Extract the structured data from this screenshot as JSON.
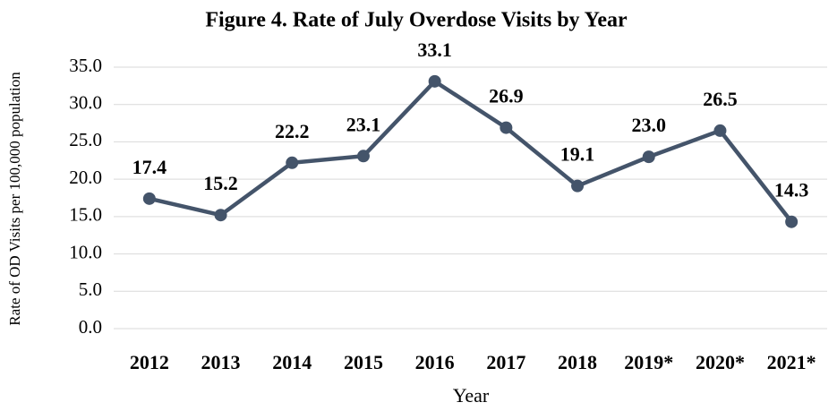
{
  "chart_data": {
    "type": "line",
    "title": "Figure 4. Rate of July Overdose Visits by Year",
    "x_label": "Year",
    "y_label": "Rate of OD Visits per 100,000 population",
    "categories": [
      "2012",
      "2013",
      "2014",
      "2015",
      "2016",
      "2017",
      "2018",
      "2019*",
      "2020*",
      "2021*"
    ],
    "values": [
      17.4,
      15.2,
      22.2,
      23.1,
      33.1,
      26.9,
      19.1,
      23.0,
      26.5,
      14.3
    ],
    "value_labels": [
      "17.4",
      "15.2",
      "22.2",
      "23.1",
      "33.1",
      "26.9",
      "19.1",
      "23.0",
      "26.5",
      "14.3"
    ],
    "color": "#44546a",
    "ylim": [
      0,
      35
    ],
    "yticks": [
      {
        "value": 0,
        "label": "0.0"
      },
      {
        "value": 5,
        "label": "5.0"
      },
      {
        "value": 10,
        "label": "10.0"
      },
      {
        "value": 15,
        "label": "15.0"
      },
      {
        "value": 20,
        "label": "20.0"
      },
      {
        "value": 25,
        "label": "25.0"
      },
      {
        "value": 30,
        "label": "30.0"
      },
      {
        "value": 35,
        "label": "35.0"
      }
    ],
    "grid": true
  }
}
